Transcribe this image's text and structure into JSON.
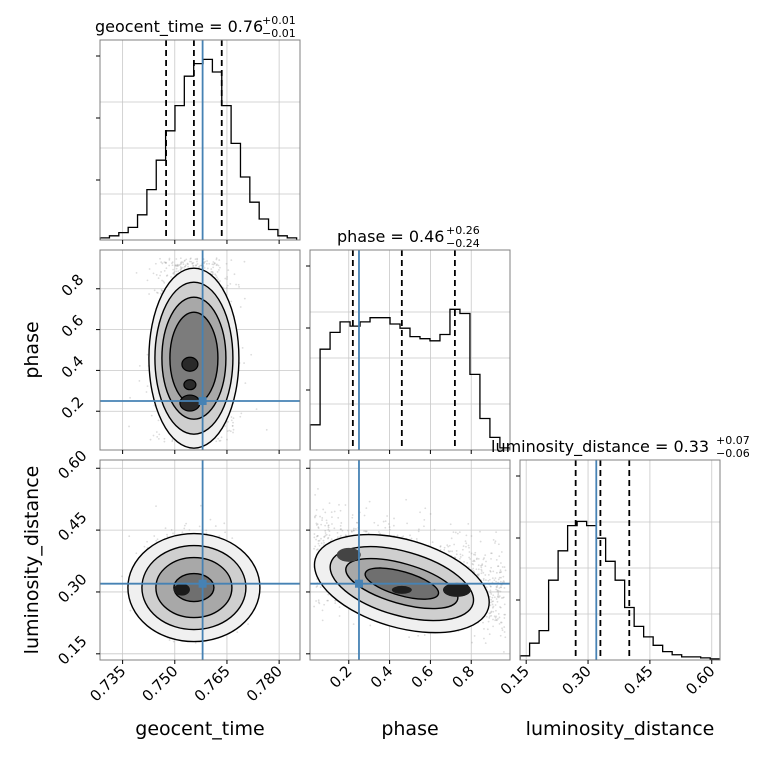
{
  "chart_data": {
    "type": "corner",
    "parameters": [
      "geocent_time",
      "phase",
      "luminosity_distance"
    ],
    "truths": [
      0.758,
      0.25,
      0.32
    ],
    "truth_color": "#4682b4",
    "ranges": [
      [
        0.7285,
        0.786
      ],
      [
        0.01,
        0.99
      ],
      [
        0.135,
        0.62
      ]
    ],
    "ticks": [
      [
        "0.735",
        "0.750",
        "0.765",
        "0.780"
      ],
      [
        "0.2",
        "0.4",
        "0.6",
        "0.8"
      ],
      [
        "0.15",
        "0.30",
        "0.45",
        "0.60"
      ]
    ],
    "titles": [
      {
        "name": "geocent_time",
        "median": "0.76",
        "plus": "+0.01",
        "minus": "−0.01"
      },
      {
        "name": "phase",
        "median": "0.46",
        "plus": "+0.26",
        "minus": "−0.24"
      },
      {
        "name": "luminosity_distance",
        "median": "0.33",
        "plus": "+0.07",
        "minus": "−0.06"
      }
    ],
    "quantiles": [
      [
        0.7475,
        0.7555,
        0.7635
      ],
      [
        0.22,
        0.46,
        0.72
      ],
      [
        0.27,
        0.33,
        0.4
      ]
    ],
    "histograms": [
      {
        "counts": [
          0.01,
          0.02,
          0.035,
          0.06,
          0.12,
          0.24,
          0.38,
          0.52,
          0.64,
          0.78,
          0.84,
          0.86,
          0.8,
          0.64,
          0.46,
          0.3,
          0.18,
          0.1,
          0.05,
          0.02,
          0.01
        ]
      },
      {
        "counts": [
          0.12,
          0.48,
          0.56,
          0.61,
          0.59,
          0.61,
          0.63,
          0.63,
          0.6,
          0.58,
          0.54,
          0.53,
          0.52,
          0.55,
          0.67,
          0.65,
          0.36,
          0.15,
          0.06,
          0.01
        ]
      },
      {
        "counts": [
          0.02,
          0.08,
          0.14,
          0.38,
          0.52,
          0.64,
          0.66,
          0.64,
          0.58,
          0.47,
          0.38,
          0.25,
          0.16,
          0.11,
          0.07,
          0.04,
          0.025,
          0.015,
          0.015,
          0.01,
          0.005
        ]
      }
    ],
    "pairs": [
      {
        "x": "geocent_time",
        "y": "phase",
        "x_center": 0.7555,
        "y_center": 0.45,
        "x_sigma": 0.0055,
        "y_sigma": 0.22,
        "shape": "wide"
      },
      {
        "x": "geocent_time",
        "y": "luminosity_distance",
        "x_center": 0.7555,
        "y_center": 0.33,
        "x_sigma": 0.0055,
        "y_sigma": 0.05,
        "shape": "round"
      },
      {
        "x": "phase",
        "y": "luminosity_distance",
        "x_center": 0.46,
        "y_center": 0.33,
        "x_sigma": 0.24,
        "y_sigma": 0.055,
        "shape": "tilted"
      }
    ]
  }
}
